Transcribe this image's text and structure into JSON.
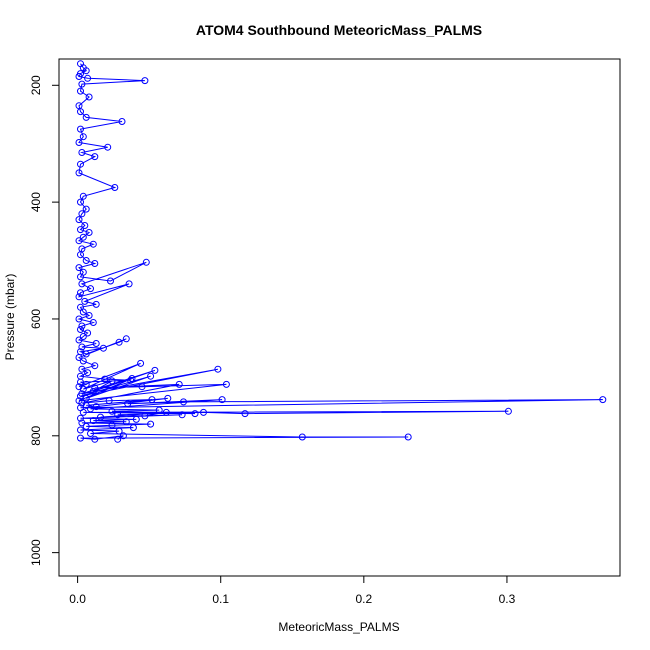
{
  "chart_data": {
    "type": "scatter",
    "title": "ATOM4 Southbound MeteoricMass_PALMS",
    "xlabel": "MeteoricMass_PALMS",
    "ylabel": "Pressure (mbar)",
    "xlim": [
      -0.013,
      0.379
    ],
    "ylim": [
      1040,
      155
    ],
    "y_reversed": true,
    "x_ticks": [
      0.0,
      0.1,
      0.2,
      0.3
    ],
    "x_tick_labels": [
      "0.0",
      "0.1",
      "0.2",
      "0.3"
    ],
    "y_ticks": [
      200,
      400,
      600,
      800,
      1000
    ],
    "y_tick_labels": [
      "200",
      "400",
      "600",
      "800",
      "1000"
    ],
    "grid": false,
    "legend": "none",
    "marker": "open-circle",
    "connected": true,
    "series": [
      {
        "color": "#0000ff",
        "x": [
          0.002,
          0.004,
          0.006,
          0.002,
          0.001,
          0.007,
          0.047,
          0.003,
          0.002,
          0.008,
          0.001,
          0.002,
          0.006,
          0.031,
          0.002,
          0.004,
          0.001,
          0.021,
          0.003,
          0.012,
          0.002,
          0.001,
          0.026,
          0.004,
          0.002,
          0.006,
          0.003,
          0.001,
          0.005,
          0.002,
          0.008,
          0.004,
          0.001,
          0.011,
          0.003,
          0.002,
          0.006,
          0.012,
          0.001,
          0.004,
          0.002,
          0.023,
          0.048,
          0.003,
          0.009,
          0.002,
          0.001,
          0.036,
          0.005,
          0.013,
          0.002,
          0.004,
          0.008,
          0.001,
          0.011,
          0.003,
          0.002,
          0.007,
          0.004,
          0.001,
          0.013,
          0.003,
          0.018,
          0.002,
          0.006,
          0.029,
          0.034,
          0.001,
          0.004,
          0.012,
          0.003,
          0.007,
          0.002,
          0.019,
          0.037,
          0.002,
          0.006,
          0.001,
          0.044,
          0.004,
          0.024,
          0.011,
          0.054,
          0.003,
          0.098,
          0.002,
          0.051,
          0.006,
          0.038,
          0.001,
          0.104,
          0.045,
          0.012,
          0.071,
          0.003,
          0.022,
          0.052,
          0.006,
          0.063,
          0.013,
          0.002,
          0.367,
          0.074,
          0.035,
          0.101,
          0.009,
          0.057,
          0.024,
          0.082,
          0.004,
          0.301,
          0.117,
          0.088,
          0.028,
          0.047,
          0.062,
          0.016,
          0.073,
          0.002,
          0.041,
          0.011,
          0.034,
          0.003,
          0.051,
          0.024,
          0.006,
          0.039,
          0.002,
          0.029,
          0.009,
          0.157,
          0.231,
          0.002,
          0.012,
          0.032,
          0.028
        ],
        "y": [
          163,
          170,
          175,
          180,
          185,
          188,
          192,
          198,
          210,
          220,
          235,
          245,
          255,
          262,
          275,
          288,
          298,
          306,
          315,
          322,
          335,
          350,
          375,
          390,
          400,
          412,
          420,
          430,
          440,
          447,
          452,
          460,
          466,
          472,
          480,
          490,
          500,
          505,
          512,
          520,
          528,
          535,
          503,
          540,
          548,
          555,
          562,
          540,
          570,
          575,
          580,
          588,
          594,
          600,
          606,
          612,
          618,
          624,
          630,
          636,
          642,
          648,
          650,
          656,
          660,
          640,
          634,
          666,
          672,
          680,
          686,
          692,
          698,
          703,
          705,
          708,
          712,
          716,
          676,
          720,
          706,
          724,
          688,
          728,
          686,
          732,
          698,
          736,
          702,
          740,
          712,
          716,
          718,
          712,
          744,
          740,
          738,
          748,
          736,
          750,
          752,
          738,
          742,
          745,
          738,
          754,
          756,
          758,
          762,
          760,
          758,
          762,
          760,
          764,
          766,
          760,
          768,
          764,
          770,
          772,
          774,
          776,
          778,
          780,
          782,
          784,
          786,
          790,
          792,
          796,
          802,
          802,
          804,
          806,
          800,
          806
        ]
      }
    ]
  }
}
